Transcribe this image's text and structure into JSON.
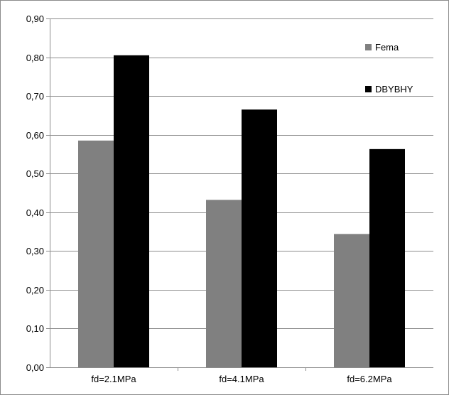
{
  "chart_data": {
    "type": "bar",
    "title": "",
    "xlabel": "",
    "ylabel": "",
    "categories": [
      "fd=2.1MPa",
      "fd=4.1MPa",
      "fd=6.2MPa"
    ],
    "series": [
      {
        "name": "Fema",
        "values": [
          0.585,
          0.432,
          0.344
        ],
        "color": "#808080"
      },
      {
        "name": "DBYBHY",
        "values": [
          0.805,
          0.665,
          0.563
        ],
        "color": "#000000"
      }
    ],
    "ylim": [
      0,
      0.9
    ],
    "yticks": [
      "0,00",
      "0,10",
      "0,20",
      "0,30",
      "0,40",
      "0,50",
      "0,60",
      "0,70",
      "0,80",
      "0,90"
    ],
    "grid": true,
    "legend_position": "top-right"
  }
}
